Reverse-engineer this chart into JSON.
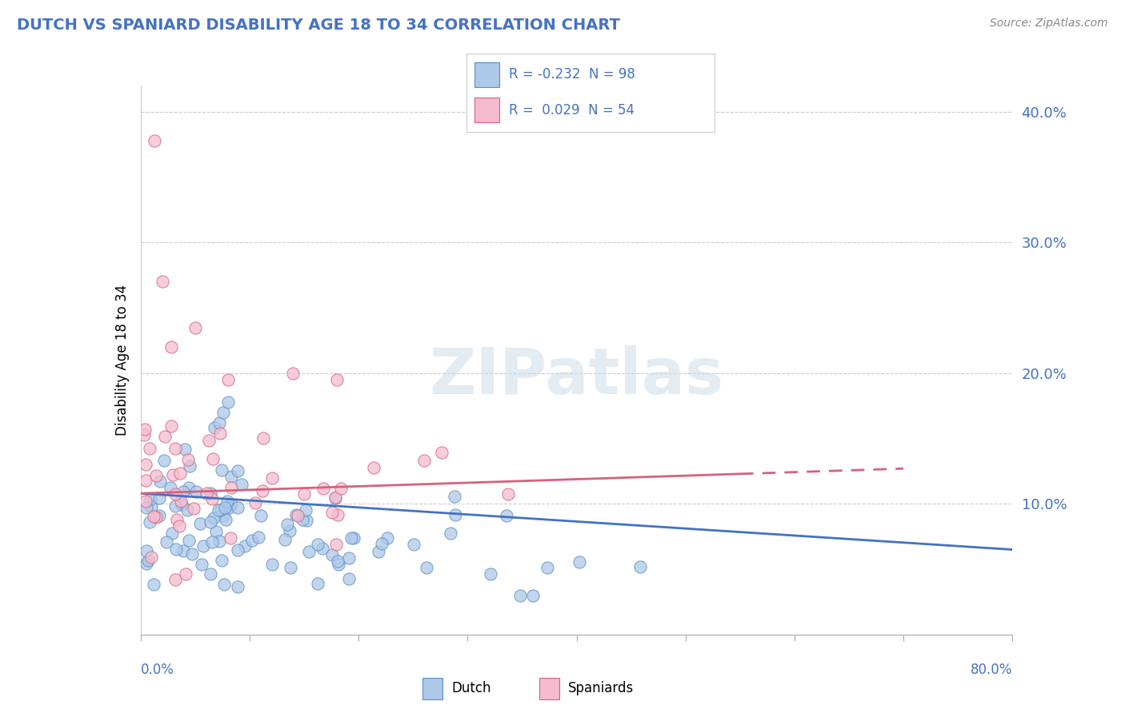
{
  "title": "DUTCH VS SPANIARD DISABILITY AGE 18 TO 34 CORRELATION CHART",
  "source": "Source: ZipAtlas.com",
  "ylabel": "Disability Age 18 to 34",
  "xlim": [
    0.0,
    0.8
  ],
  "ylim": [
    0.0,
    0.42
  ],
  "ytick_vals": [
    0.1,
    0.2,
    0.3,
    0.4
  ],
  "ytick_labels": [
    "10.0%",
    "20.0%",
    "30.0%",
    "40.0%"
  ],
  "dutch_color": "#adc8e8",
  "dutch_edge_color": "#5b8ec9",
  "dutch_line_color": "#4472c4",
  "spaniard_color": "#f5bcd0",
  "spaniard_edge_color": "#d9607e",
  "spaniard_line_color": "#d9607e",
  "label_color": "#4472c4",
  "title_color": "#4472c4",
  "watermark": "ZIPatlas",
  "dutch_R": -0.232,
  "dutch_N": 98,
  "spaniard_R": 0.029,
  "spaniard_N": 54,
  "dutch_trend_start_x": 0.0,
  "dutch_trend_start_y": 0.108,
  "dutch_trend_end_x": 0.8,
  "dutch_trend_end_y": 0.065,
  "spaniard_trend_start_x": 0.0,
  "spaniard_trend_start_y": 0.108,
  "spaniard_trend_end_x": 0.7,
  "spaniard_trend_end_y": 0.127
}
